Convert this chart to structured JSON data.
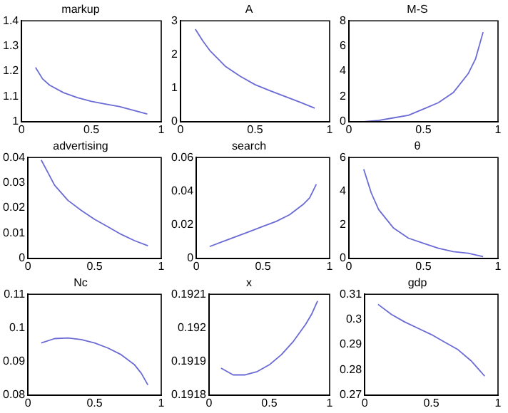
{
  "chart_data": [
    {
      "type": "line",
      "title": "markup",
      "x": [
        0.1,
        0.15,
        0.2,
        0.3,
        0.4,
        0.5,
        0.6,
        0.7,
        0.8,
        0.9
      ],
      "values": [
        1.215,
        1.17,
        1.145,
        1.115,
        1.095,
        1.08,
        1.07,
        1.06,
        1.045,
        1.03
      ],
      "color": "#6b6bd6",
      "xlim": [
        0,
        1
      ],
      "xticks": [
        0,
        0.5,
        1
      ],
      "ylim": [
        1,
        1.4
      ],
      "yticks": [
        1,
        1.1,
        1.2,
        1.3,
        1.4
      ]
    },
    {
      "type": "line",
      "title": "A",
      "x": [
        0.1,
        0.15,
        0.2,
        0.3,
        0.4,
        0.5,
        0.6,
        0.7,
        0.8,
        0.9
      ],
      "values": [
        2.75,
        2.4,
        2.1,
        1.65,
        1.35,
        1.1,
        0.92,
        0.75,
        0.58,
        0.4
      ],
      "color": "#6b6bd6",
      "xlim": [
        0,
        1
      ],
      "xticks": [
        0,
        0.5,
        1
      ],
      "ylim": [
        0,
        3
      ],
      "yticks": [
        0,
        1,
        2,
        3
      ]
    },
    {
      "type": "line",
      "title": "M-S",
      "x": [
        0.1,
        0.2,
        0.3,
        0.4,
        0.5,
        0.6,
        0.7,
        0.8,
        0.85,
        0.9
      ],
      "values": [
        0,
        0.1,
        0.3,
        0.5,
        1,
        1.5,
        2.3,
        3.8,
        5.0,
        7.1
      ],
      "color": "#6b6bd6",
      "xlim": [
        0,
        1
      ],
      "xticks": [
        0,
        0.5,
        1
      ],
      "ylim": [
        0,
        8
      ],
      "yticks": [
        0,
        2,
        4,
        6,
        8
      ]
    },
    {
      "type": "line",
      "title": "advertising",
      "x": [
        0.1,
        0.15,
        0.2,
        0.3,
        0.4,
        0.5,
        0.6,
        0.7,
        0.8,
        0.9
      ],
      "values": [
        0.039,
        0.034,
        0.029,
        0.023,
        0.019,
        0.0155,
        0.0125,
        0.0095,
        0.007,
        0.005
      ],
      "color": "#6b6bd6",
      "xlim": [
        0,
        1
      ],
      "xticks": [
        0,
        0.5,
        1
      ],
      "ylim": [
        0,
        0.04
      ],
      "yticks": [
        0,
        0.01,
        0.02,
        0.03,
        0.04
      ]
    },
    {
      "type": "line",
      "title": "search",
      "x": [
        0.1,
        0.2,
        0.3,
        0.4,
        0.5,
        0.6,
        0.7,
        0.8,
        0.85,
        0.9
      ],
      "values": [
        0.007,
        0.01,
        0.013,
        0.016,
        0.019,
        0.022,
        0.026,
        0.032,
        0.036,
        0.044
      ],
      "color": "#6b6bd6",
      "xlim": [
        0,
        1
      ],
      "xticks": [
        0,
        0.5,
        1
      ],
      "ylim": [
        0,
        0.06
      ],
      "yticks": [
        0,
        0.02,
        0.04,
        0.06
      ]
    },
    {
      "type": "line",
      "title": "θ",
      "x": [
        0.1,
        0.15,
        0.2,
        0.3,
        0.4,
        0.5,
        0.6,
        0.7,
        0.8,
        0.9
      ],
      "values": [
        5.3,
        3.9,
        2.9,
        1.8,
        1.2,
        0.9,
        0.6,
        0.4,
        0.3,
        0.1
      ],
      "color": "#6b6bd6",
      "xlim": [
        0,
        1
      ],
      "xticks": [
        0,
        0.5,
        1
      ],
      "ylim": [
        0,
        6
      ],
      "yticks": [
        0,
        2,
        4,
        6
      ]
    },
    {
      "type": "line",
      "title": "Nc",
      "x": [
        0.1,
        0.2,
        0.3,
        0.4,
        0.5,
        0.6,
        0.7,
        0.8,
        0.85,
        0.9
      ],
      "values": [
        0.0955,
        0.0968,
        0.097,
        0.0965,
        0.0955,
        0.094,
        0.092,
        0.089,
        0.0865,
        0.083
      ],
      "color": "#6b6bd6",
      "xlim": [
        0,
        1
      ],
      "xticks": [
        0,
        0.5,
        1
      ],
      "ylim": [
        0.08,
        0.11
      ],
      "yticks": [
        0.08,
        0.09,
        0.1,
        0.11
      ]
    },
    {
      "type": "line",
      "title": "x",
      "x": [
        0.1,
        0.2,
        0.3,
        0.4,
        0.5,
        0.6,
        0.7,
        0.8,
        0.85,
        0.9
      ],
      "values": [
        0.19188,
        0.19186,
        0.19186,
        0.19187,
        0.19189,
        0.19192,
        0.19196,
        0.19201,
        0.19204,
        0.19208
      ],
      "color": "#6b6bd6",
      "xlim": [
        0,
        1
      ],
      "xticks": [
        0,
        0.5,
        1
      ],
      "ylim": [
        0.1918,
        0.1921
      ],
      "yticks": [
        0.1918,
        0.1919,
        0.192,
        0.1921
      ]
    },
    {
      "type": "line",
      "title": "gdp",
      "x": [
        0.1,
        0.2,
        0.3,
        0.4,
        0.5,
        0.6,
        0.7,
        0.8,
        0.85,
        0.9
      ],
      "values": [
        0.306,
        0.302,
        0.299,
        0.2965,
        0.294,
        0.291,
        0.288,
        0.2835,
        0.2805,
        0.2775
      ],
      "color": "#6b6bd6",
      "xlim": [
        0,
        1
      ],
      "xticks": [
        0,
        0.5,
        1
      ],
      "ylim": [
        0.27,
        0.31
      ],
      "yticks": [
        0.27,
        0.28,
        0.29,
        0.3,
        0.31
      ]
    }
  ]
}
